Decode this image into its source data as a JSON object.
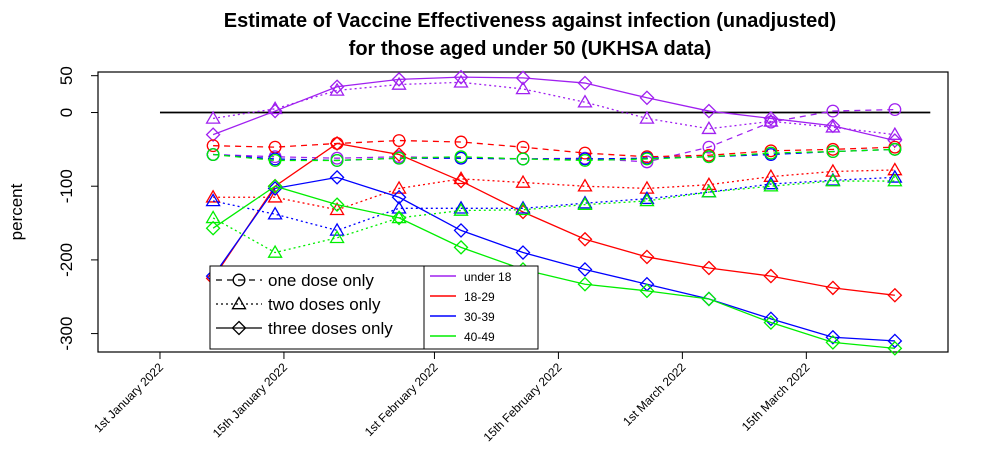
{
  "chart_data": {
    "type": "line",
    "title_line1": "Estimate of Vaccine Effectiveness against infection (unadjusted)",
    "title_line2": "for those aged under 50 (UKHSA data)",
    "ylabel": "percent",
    "xlabel": "",
    "ylim": [
      -325,
      55
    ],
    "yticks": [
      50,
      0,
      -100,
      -200,
      -300
    ],
    "ytick_labels": [
      "50",
      "0",
      "-100",
      "-200",
      "-300"
    ],
    "x_domain": [
      "2021-12-25",
      "2022-03-31"
    ],
    "xticks": [
      "2022-01-01",
      "2022-01-15",
      "2022-02-01",
      "2022-02-15",
      "2022-03-01",
      "2022-03-15"
    ],
    "xtick_labels": [
      "1st January 2022",
      "15th January 2022",
      "1st February 2022",
      "15th February 2022",
      "1st March 2022",
      "15th March 2022"
    ],
    "reference_line": 0,
    "dates": [
      "2022-01-07",
      "2022-01-14",
      "2022-01-21",
      "2022-01-28",
      "2022-02-04",
      "2022-02-11",
      "2022-02-18",
      "2022-02-25",
      "2022-03-04",
      "2022-03-11",
      "2022-03-18",
      "2022-03-25"
    ],
    "age_legend": [
      {
        "name": "under 18",
        "color": "#a020f0"
      },
      {
        "name": "18-29",
        "color": "#ff0000"
      },
      {
        "name": "30-39",
        "color": "#0000ff"
      },
      {
        "name": "40-49",
        "color": "#00ee00"
      }
    ],
    "dose_legend": [
      {
        "name": "one dose only",
        "dash": "6,5",
        "marker": "circle"
      },
      {
        "name": "two doses only",
        "dash": "2,3",
        "marker": "triangle"
      },
      {
        "name": "three doses only",
        "dash": "",
        "marker": "diamond"
      }
    ],
    "series": [
      {
        "age": "under 18",
        "dose": "one dose only",
        "color": "#a020f0",
        "values": [
          -57,
          -60,
          -62,
          -60,
          -62,
          -63,
          -62,
          -67,
          -47,
          -13,
          2,
          4
        ]
      },
      {
        "age": "under 18",
        "dose": "two doses only",
        "color": "#a020f0",
        "values": [
          -8,
          5,
          30,
          38,
          41,
          32,
          14,
          -8,
          -22,
          -12,
          -20,
          -30
        ]
      },
      {
        "age": "under 18",
        "dose": "three doses only",
        "color": "#a020f0",
        "values": [
          -30,
          2,
          35,
          45,
          48,
          47,
          40,
          20,
          2,
          -8,
          -18,
          -38
        ]
      },
      {
        "age": "18-29",
        "dose": "one dose only",
        "color": "#ff0000",
        "values": [
          -45,
          -47,
          -42,
          -38,
          -40,
          -47,
          -55,
          -60,
          -58,
          -52,
          -50,
          -47
        ]
      },
      {
        "age": "18-29",
        "dose": "two doses only",
        "color": "#ff0000",
        "values": [
          -115,
          -115,
          -132,
          -103,
          -90,
          -95,
          -100,
          -103,
          -98,
          -87,
          -80,
          -78
        ]
      },
      {
        "age": "18-29",
        "dose": "three doses only",
        "color": "#ff0000",
        "values": [
          -225,
          -100,
          -42,
          -57,
          -93,
          -135,
          -172,
          -196,
          -211,
          -222,
          -238,
          -248
        ]
      },
      {
        "age": "30-39",
        "dose": "one dose only",
        "color": "#0000ff",
        "values": [
          -57,
          -63,
          -65,
          -62,
          -62,
          -63,
          -63,
          -62,
          -60,
          -57,
          -53,
          -50
        ]
      },
      {
        "age": "30-39",
        "dose": "two doses only",
        "color": "#0000ff",
        "values": [
          -120,
          -138,
          -160,
          -130,
          -130,
          -130,
          -123,
          -117,
          -108,
          -97,
          -92,
          -88
        ]
      },
      {
        "age": "30-39",
        "dose": "three doses only",
        "color": "#0000ff",
        "values": [
          -222,
          -103,
          -88,
          -115,
          -160,
          -190,
          -213,
          -233,
          -253,
          -280,
          -305,
          -310
        ]
      },
      {
        "age": "40-49",
        "dose": "one dose only",
        "color": "#00ee00",
        "values": [
          -57,
          -65,
          -65,
          -62,
          -60,
          -63,
          -65,
          -63,
          -60,
          -55,
          -53,
          -50
        ]
      },
      {
        "age": "40-49",
        "dose": "two doses only",
        "color": "#00ee00",
        "values": [
          -143,
          -190,
          -170,
          -143,
          -133,
          -132,
          -125,
          -120,
          -108,
          -100,
          -93,
          -93
        ]
      },
      {
        "age": "40-49",
        "dose": "three doses only",
        "color": "#00ee00",
        "values": [
          -157,
          -100,
          -125,
          -143,
          -183,
          -213,
          -233,
          -242,
          -253,
          -285,
          -312,
          -320
        ]
      }
    ]
  }
}
